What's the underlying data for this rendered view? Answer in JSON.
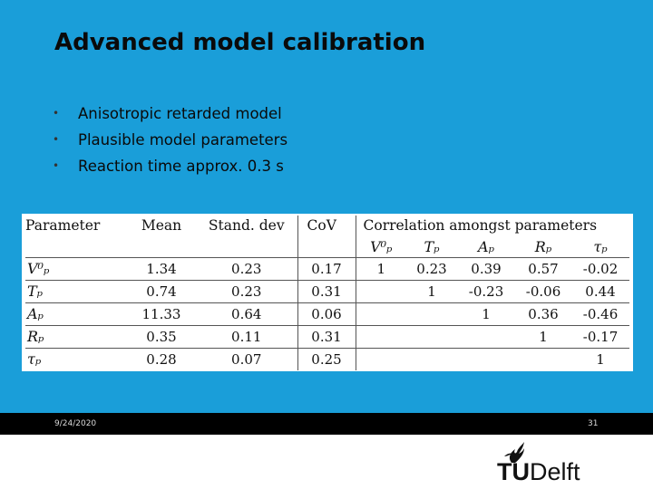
{
  "slide": {
    "title": "Advanced model calibration",
    "bullets": [
      "Anisotropic retarded model",
      "Plausible model parameters",
      "Reaction time approx. 0.3 s"
    ]
  },
  "table": {
    "headers": [
      "Parameter",
      "Mean",
      "Stand. dev",
      "CoV",
      "Correlation amongst parameters"
    ],
    "correlation_subheaders": [
      "V⁰ₚ",
      "Tₚ",
      "Aₚ",
      "Rₚ",
      "τₚ"
    ],
    "rows": [
      {
        "param": "V⁰ₚ",
        "mean": "1.34",
        "sd": "0.23",
        "cov": "0.17",
        "corr": [
          "1",
          "0.23",
          "0.39",
          "0.57",
          "-0.02"
        ]
      },
      {
        "param": "Tₚ",
        "mean": "0.74",
        "sd": "0.23",
        "cov": "0.31",
        "corr": [
          "",
          "1",
          "-0.23",
          "-0.06",
          "0.44"
        ]
      },
      {
        "param": "Aₚ",
        "mean": "11.33",
        "sd": "0.64",
        "cov": "0.06",
        "corr": [
          "",
          "",
          "1",
          "0.36",
          "-0.46"
        ]
      },
      {
        "param": "Rₚ",
        "mean": "0.35",
        "sd": "0.11",
        "cov": "0.31",
        "corr": [
          "",
          "",
          "",
          "1",
          "-0.17"
        ]
      },
      {
        "param": "τₚ",
        "mean": "0.28",
        "sd": "0.07",
        "cov": "0.25",
        "corr": [
          "",
          "",
          "",
          "",
          "1"
        ]
      }
    ]
  },
  "footer": {
    "date": "9/24/2020",
    "page": "31"
  },
  "logo": {
    "text_bold": "TU",
    "text_regular": "Delft",
    "icon": "flame-icon"
  },
  "colors": {
    "panel_background": "#1a9ed9",
    "footer_bar": "#000000"
  }
}
